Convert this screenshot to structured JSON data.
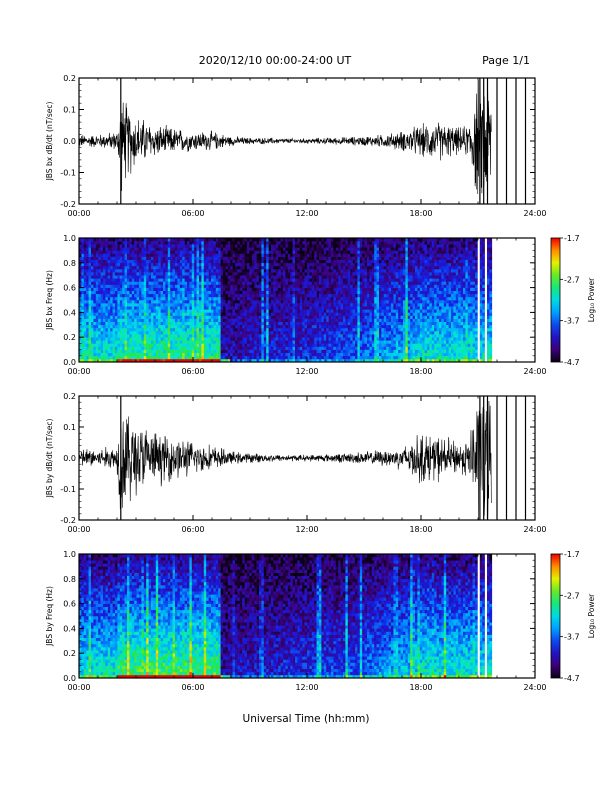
{
  "header": {
    "title": "2020/12/10  00:00-24:00 UT",
    "page": "Page 1/1"
  },
  "xaxis": {
    "ticks": [
      "00:00",
      "06:00",
      "12:00",
      "18:00",
      "24:00"
    ],
    "label": "Universal Time (hh:mm)",
    "range_hours": [
      0,
      24
    ]
  },
  "colorbar": {
    "ticks": [
      "-1.7",
      "-2.7",
      "-3.7",
      "-4.7"
    ],
    "label": "Log₁₀ Power",
    "range": [
      -4.7,
      -1.7
    ]
  },
  "chart_data": [
    {
      "type": "line",
      "panel": "bx-timeseries",
      "ylabel": "JBS bx dB/dt (nT/sec)",
      "ylim": [
        -0.2,
        0.2
      ],
      "yticks": [
        "0.2",
        "0.1",
        "0.0",
        "-0.1",
        "-0.2"
      ],
      "x_hours": [
        0,
        1,
        2,
        2.2,
        2.5,
        3,
        4,
        5,
        6,
        7,
        8,
        9,
        10,
        11,
        12,
        13,
        14,
        15,
        16,
        17,
        18,
        19,
        20,
        20.5,
        21,
        21.5
      ],
      "amplitude": [
        0.02,
        0.02,
        0.03,
        0.15,
        0.12,
        0.08,
        0.05,
        0.04,
        0.03,
        0.03,
        0.015,
        0.01,
        0.01,
        0.008,
        0.008,
        0.01,
        0.012,
        0.015,
        0.02,
        0.03,
        0.05,
        0.06,
        0.04,
        0.05,
        0.2,
        0.2
      ],
      "spikes_hours": [
        2.2,
        21.1,
        21.3,
        21.5,
        22.0,
        22.5,
        23.0,
        23.5
      ],
      "gridlines": false
    },
    {
      "type": "heatmap",
      "panel": "bx-spectrogram",
      "ylabel": "JBS bx Freq (Hz)",
      "ylim": [
        0.0,
        1.0
      ],
      "yticks": [
        "1.0",
        "0.8",
        "0.6",
        "0.4",
        "0.2",
        "0.0"
      ],
      "log_power_range": [
        -4.7,
        -1.7
      ],
      "data_gap_hours": [
        21.7,
        24
      ]
    },
    {
      "type": "line",
      "panel": "by-timeseries",
      "ylabel": "JBS by dB/dt (nT/sec)",
      "ylim": [
        -0.2,
        0.2
      ],
      "yticks": [
        "0.2",
        "0.1",
        "0.0",
        "-0.1",
        "-0.2"
      ],
      "x_hours": [
        0,
        1,
        2,
        2.2,
        2.5,
        3,
        4,
        5,
        6,
        7,
        8,
        9,
        10,
        11,
        12,
        13,
        14,
        15,
        16,
        17,
        18,
        19,
        20,
        20.5,
        21,
        21.5
      ],
      "amplitude": [
        0.03,
        0.03,
        0.04,
        0.2,
        0.15,
        0.12,
        0.08,
        0.07,
        0.05,
        0.04,
        0.02,
        0.015,
        0.012,
        0.01,
        0.01,
        0.012,
        0.015,
        0.02,
        0.025,
        0.035,
        0.08,
        0.07,
        0.05,
        0.06,
        0.2,
        0.2
      ],
      "spikes_hours": [
        2.2,
        21.1,
        21.3,
        21.5,
        22.0,
        22.5,
        23.0,
        23.5
      ],
      "gridlines": false
    },
    {
      "type": "heatmap",
      "panel": "by-spectrogram",
      "ylabel": "JBS by Freq (Hz)",
      "ylim": [
        0.0,
        1.0
      ],
      "yticks": [
        "1.0",
        "0.8",
        "0.6",
        "0.4",
        "0.2",
        "0.0"
      ],
      "log_power_range": [
        -4.7,
        -1.7
      ],
      "data_gap_hours": [
        21.7,
        24
      ]
    }
  ]
}
